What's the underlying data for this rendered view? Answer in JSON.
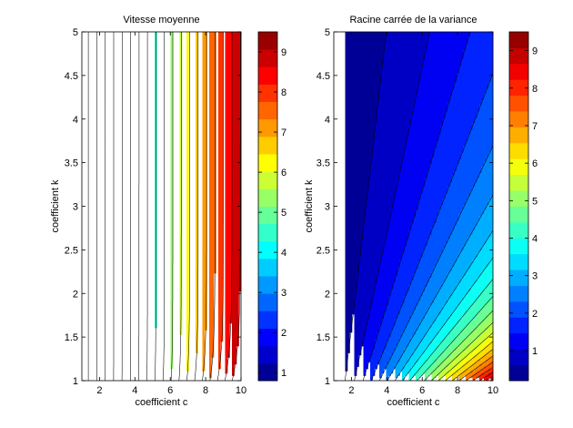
{
  "chart_data": [
    {
      "type": "heatmap",
      "subtype": "filled-contour",
      "title": "Vitesse moyenne",
      "xlabel": "coefficient c",
      "ylabel": "coefficient k",
      "xlim": [
        1,
        10
      ],
      "ylim": [
        1,
        5
      ],
      "xticks": [
        2,
        4,
        6,
        8,
        10
      ],
      "yticks": [
        1,
        1.5,
        2,
        2.5,
        3,
        3.5,
        4,
        4.5,
        5
      ],
      "ytick_labels": [
        "1",
        "1.5",
        "2",
        "2.5",
        "3",
        "3.5",
        "4",
        "4.5",
        "5"
      ],
      "colorbar": {
        "min": 0.8,
        "max": 9.5,
        "ticks": [
          1,
          2,
          3,
          4,
          5,
          6,
          7,
          8,
          9
        ]
      },
      "colormap": "jet",
      "levels": 20,
      "sample_values": [
        {
          "c": 1,
          "k": 5,
          "value": 0.9
        },
        {
          "c": 10,
          "k": 5,
          "value": 9.1
        },
        {
          "c": 10,
          "k": 1,
          "value": 9.4
        },
        {
          "c": 5.5,
          "k": 3,
          "value": 5.0
        }
      ]
    },
    {
      "type": "heatmap",
      "subtype": "filled-contour",
      "title": "Racine carrée de la variance",
      "xlabel": "coefficient c",
      "ylabel": "coefficient k",
      "xlim": [
        1,
        10
      ],
      "ylim": [
        1,
        5
      ],
      "xticks": [
        2,
        4,
        6,
        8,
        10
      ],
      "yticks": [
        1,
        1.5,
        2,
        2.5,
        3,
        3.5,
        4,
        4.5,
        5
      ],
      "ytick_labels": [
        "1",
        "1.5",
        "2",
        "2.5",
        "3",
        "3.5",
        "4",
        "4.5",
        "5"
      ],
      "colorbar": {
        "min": 0.2,
        "max": 9.5,
        "ticks": [
          1,
          2,
          3,
          4,
          5,
          6,
          7,
          8,
          9
        ]
      },
      "colormap": "jet",
      "levels": 22,
      "sample_values": [
        {
          "c": 1,
          "k": 5,
          "value": 0.2
        },
        {
          "c": 10,
          "k": 5,
          "value": 2.2
        },
        {
          "c": 10,
          "k": 1,
          "value": 9.1
        },
        {
          "c": 5,
          "k": 1,
          "value": 4.5
        }
      ]
    }
  ]
}
